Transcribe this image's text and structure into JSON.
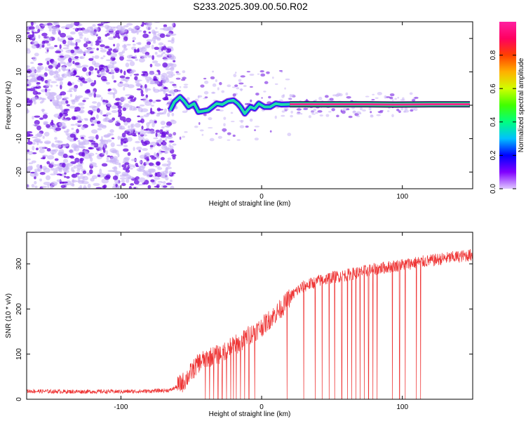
{
  "figure": {
    "title": "S233.2025.309.00.50.R02"
  },
  "colors": {
    "background": "#ffffff",
    "axis": "#000000",
    "snr_line": "#ee3333",
    "track_core": "#ff2288",
    "track_ring": "#22ddaa",
    "scatter_main": "#6a0be0",
    "scatter_light": "#c8b4f6"
  },
  "chart_data": [
    {
      "type": "heatmap",
      "xlabel": "Height of straight line (km)",
      "ylabel": "Frequency (Hz)",
      "xlim": [
        -167,
        150
      ],
      "ylim": [
        -25,
        25
      ],
      "xticks": [
        -100,
        0,
        100
      ],
      "yticks": [
        -20,
        -10,
        0,
        10,
        20
      ],
      "colorbar": {
        "label": "Normalized spectral amplitude",
        "range": [
          0,
          1
        ],
        "ticks": [
          0.0,
          0.2,
          0.4,
          0.6,
          0.8
        ],
        "tick_labels": [
          "0.0",
          "0.2",
          "0.4",
          "0.6",
          "0.8"
        ],
        "colormap": [
          "#e0c8ff",
          "#8000ff",
          "#0000ff",
          "#00c0ff",
          "#00ff80",
          "#40ff00",
          "#d0ff00",
          "#ffb000",
          "#ff4000",
          "#ff0060",
          "#ff20a0"
        ]
      },
      "noise_region_x": [
        -167,
        -62
      ],
      "ridge_start_x": 15,
      "track": [
        [
          -65,
          -1.5
        ],
        [
          -62,
          1.0
        ],
        [
          -58,
          2.5
        ],
        [
          -55,
          1.2
        ],
        [
          -52,
          -0.5
        ],
        [
          -48,
          0.5
        ],
        [
          -45,
          -2.0
        ],
        [
          -42,
          -1.8
        ],
        [
          -38,
          -1.5
        ],
        [
          -35,
          -0.5
        ],
        [
          -32,
          0.5
        ],
        [
          -28,
          0.2
        ],
        [
          -24,
          1.2
        ],
        [
          -20,
          1.5
        ],
        [
          -17,
          0.5
        ],
        [
          -15,
          -0.5
        ],
        [
          -12,
          -2.5
        ],
        [
          -8,
          -0.5
        ],
        [
          -5,
          -1.0
        ],
        [
          -2,
          0.5
        ],
        [
          2,
          -0.5
        ],
        [
          6,
          -0.5
        ],
        [
          10,
          0.5
        ],
        [
          14,
          0.2
        ],
        [
          20,
          0.3
        ],
        [
          35,
          0.3
        ],
        [
          55,
          0.3
        ],
        [
          75,
          0.3
        ],
        [
          95,
          0.2
        ],
        [
          120,
          0.3
        ],
        [
          148,
          0.3
        ]
      ]
    },
    {
      "type": "line",
      "xlabel": "Height of straight line (km)",
      "ylabel": "SNR (10 * v/v)",
      "xlim": [
        -167,
        150
      ],
      "ylim": [
        0,
        370
      ],
      "xticks": [
        -100,
        0,
        100
      ],
      "yticks": [
        0,
        100,
        200,
        300
      ],
      "series": [
        {
          "x": [
            -167,
            -140,
            -120,
            -100,
            -80,
            -65,
            -60,
            -55,
            -50,
            -45,
            -40,
            -35,
            -30,
            -25,
            -20,
            -15,
            -10,
            -5,
            0,
            5,
            10,
            15,
            20,
            25,
            30,
            40,
            50,
            60,
            70,
            80,
            90,
            100,
            110,
            120,
            130,
            140,
            150
          ],
          "values": [
            18,
            17,
            17,
            17,
            18,
            20,
            28,
            40,
            60,
            80,
            90,
            95,
            100,
            110,
            120,
            125,
            140,
            150,
            160,
            175,
            190,
            205,
            225,
            240,
            250,
            262,
            270,
            275,
            282,
            288,
            293,
            298,
            303,
            307,
            312,
            316,
            320
          ]
        }
      ],
      "dropouts_x": [
        -40,
        -37,
        -34,
        -31,
        -28,
        -25,
        -22,
        -20,
        -18,
        -15,
        -12,
        -9,
        -5,
        18,
        30,
        38,
        43,
        48,
        52,
        57,
        61,
        64,
        67,
        70,
        73,
        76,
        79,
        82,
        93,
        98,
        102,
        110,
        113
      ]
    }
  ]
}
